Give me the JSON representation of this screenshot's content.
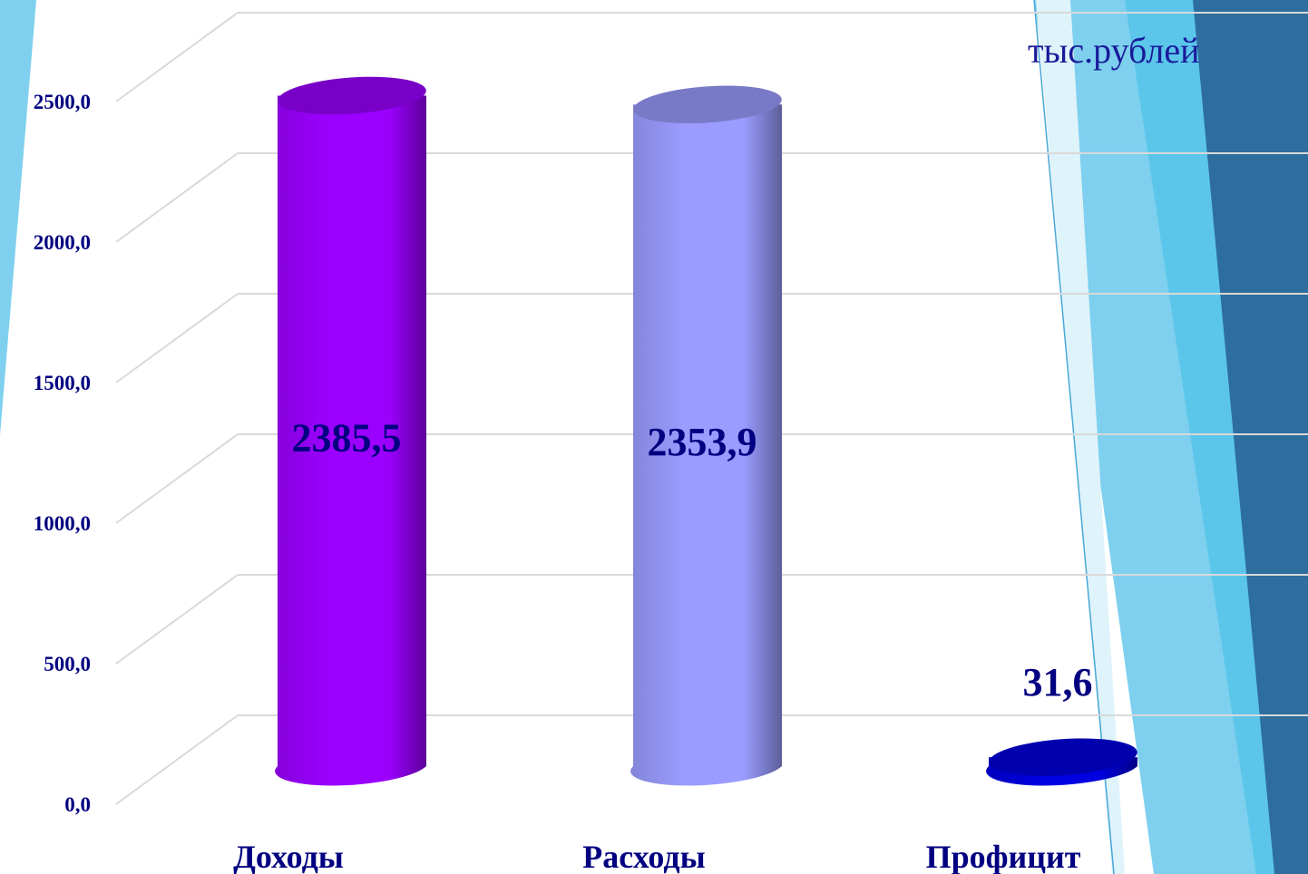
{
  "chart_data": {
    "type": "bar",
    "unit": "тыс.рублей",
    "categories": [
      "Доходы",
      "Расходы",
      "Профицит"
    ],
    "values": [
      2385.5,
      2353.9,
      31.6
    ],
    "value_labels": [
      "2385,5",
      "2353,9",
      "31,6"
    ],
    "y_ticks": [
      "0,0",
      "500,0",
      "1000,0",
      "1500,0",
      "2000,0",
      "2500,0"
    ],
    "ylim": [
      0,
      2800
    ],
    "grid": true,
    "colors": [
      "#9b00ff",
      "#9a9cff",
      "#0000e0"
    ]
  },
  "theme": {
    "accent_light": "#7ed0ee",
    "accent_mid": "#5bc6ea",
    "accent_dark": "#2e6e9e",
    "label_color": "#000080"
  }
}
